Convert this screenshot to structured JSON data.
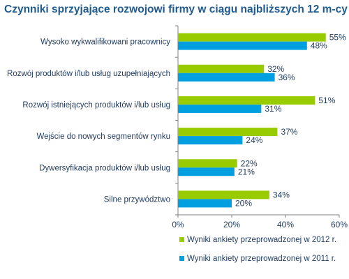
{
  "chart_data": {
    "type": "bar",
    "orientation": "horizontal",
    "title": "Czynniki sprzyjające rozwojowi firmy w ciągu najbliższych 12 m-cy",
    "categories": [
      "Wysoko wykwalifikowani pracownicy",
      "Rozwój produktów i/lub usług uzupełniających",
      "Rozwój istniejących produktów i/lub usług",
      "Wejście do nowych segmentów rynku",
      "Dywersyfikacja produktów i/lub usług",
      "Silne przywództwo"
    ],
    "series": [
      {
        "name": "Wyniki ankiety przeprowadzonej w 2012 r.",
        "values": [
          55,
          32,
          51,
          37,
          22,
          34
        ],
        "color": "#99cc00"
      },
      {
        "name": "Wyniki ankiety przeprowadzonej w 2011 r.",
        "values": [
          48,
          36,
          31,
          24,
          21,
          20
        ],
        "color": "#00a0e0"
      }
    ],
    "xlim": [
      0,
      60
    ],
    "xticks": [
      "0%",
      "20%",
      "40%",
      "60%"
    ],
    "value_suffix": "%",
    "grid": false,
    "legend_position": "bottom-right"
  },
  "colors": {
    "title": "#1f5a8f",
    "label_text": "#1f3a5f",
    "axis": "#808080"
  }
}
